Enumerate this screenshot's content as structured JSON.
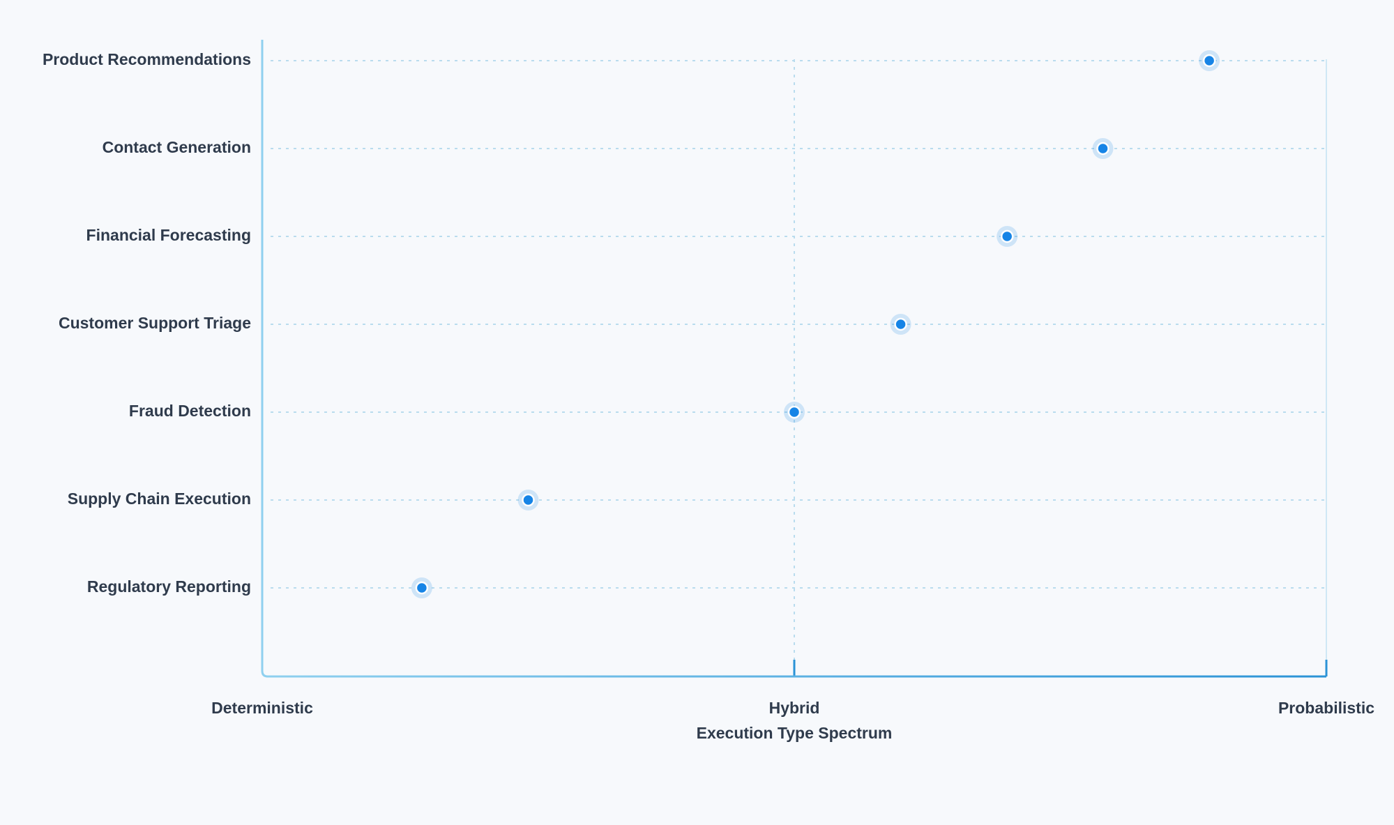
{
  "chart_data": {
    "type": "dot",
    "categories": [
      "Product Recommendations",
      "Contact Generation",
      "Financial Forecasting",
      "Customer Support Triage",
      "Fraud Detection",
      "Supply Chain Execution",
      "Regulatory Reporting"
    ],
    "values": [
      89,
      79,
      70,
      60,
      50,
      25,
      15
    ],
    "color": "#1684e6",
    "xlim": [
      0,
      100
    ],
    "xticks": [
      {
        "value": 0,
        "label": "Deterministic"
      },
      {
        "value": 50,
        "label": "Hybrid"
      },
      {
        "value": 100,
        "label": "Probabilistic"
      }
    ],
    "xlabel": "Execution Type Spectrum",
    "grid": true
  }
}
